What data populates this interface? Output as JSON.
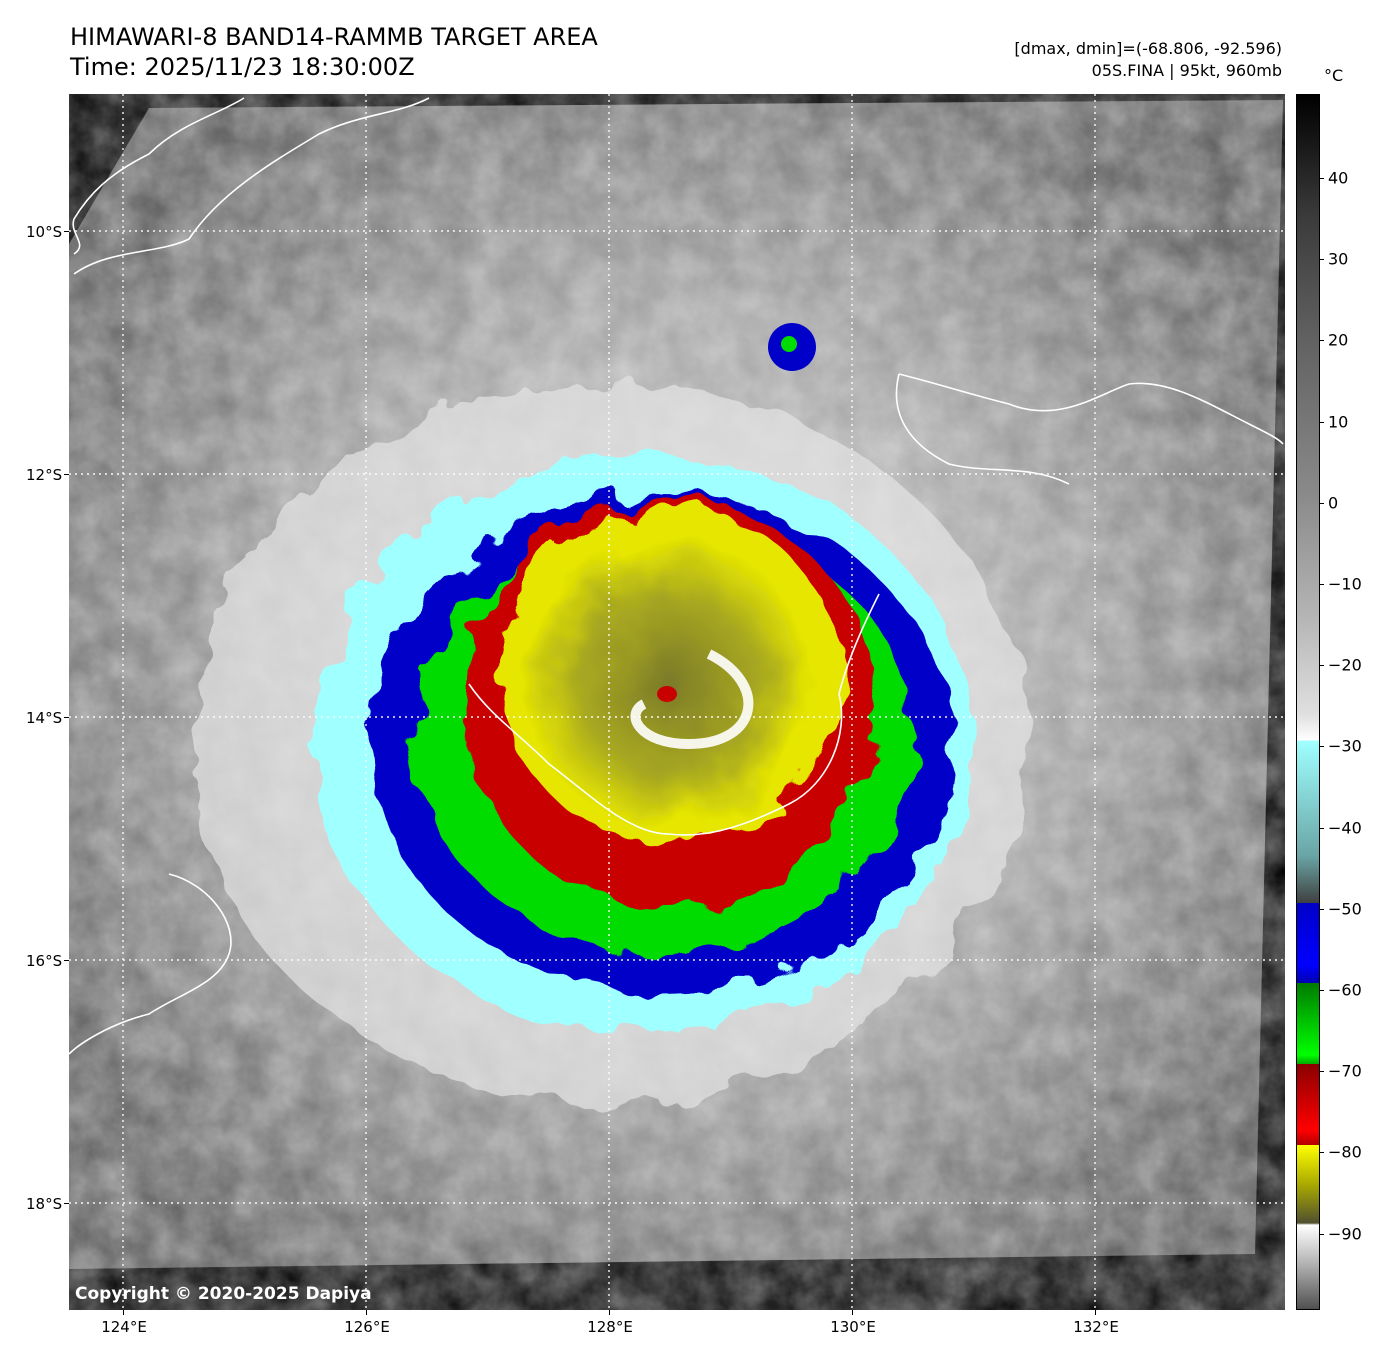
{
  "header": {
    "title_line1": "HIMAWARI-8 BAND14-RAMMB TARGET AREA",
    "title_line2": "Time: 2025/11/23 18:30:00Z",
    "meta_line1": "[dmax, dmin]=(-68.806, -92.596)",
    "meta_line2": "05S.FINA | 95kt, 960mb"
  },
  "map": {
    "copyright": "Copyright © 2020-2025 Dapiya",
    "lon_labels": [
      "124°E",
      "126°E",
      "128°E",
      "130°E",
      "132°E"
    ],
    "lat_labels": [
      "10°S",
      "12°S",
      "14°S",
      "16°S",
      "18°S"
    ],
    "gridline_style": "dotted-white",
    "coastline_color": "#ffffff"
  },
  "colorbar": {
    "unit": "°C",
    "labels": [
      "40",
      "30",
      "20",
      "10",
      "0",
      "−10",
      "−20",
      "−30",
      "−40",
      "−50",
      "−60",
      "−70",
      "−80",
      "−90"
    ],
    "bands": [
      {
        "range": "-30 to -50",
        "color": "#a0ffff"
      },
      {
        "range": "-50 to -60",
        "color": "#0000c8"
      },
      {
        "range": "-60 to -70",
        "color": "#00dc00"
      },
      {
        "range": "-70 to -80",
        "color": "#c80000"
      },
      {
        "range": "-80 to -90",
        "color": "#e6e600"
      }
    ]
  }
}
